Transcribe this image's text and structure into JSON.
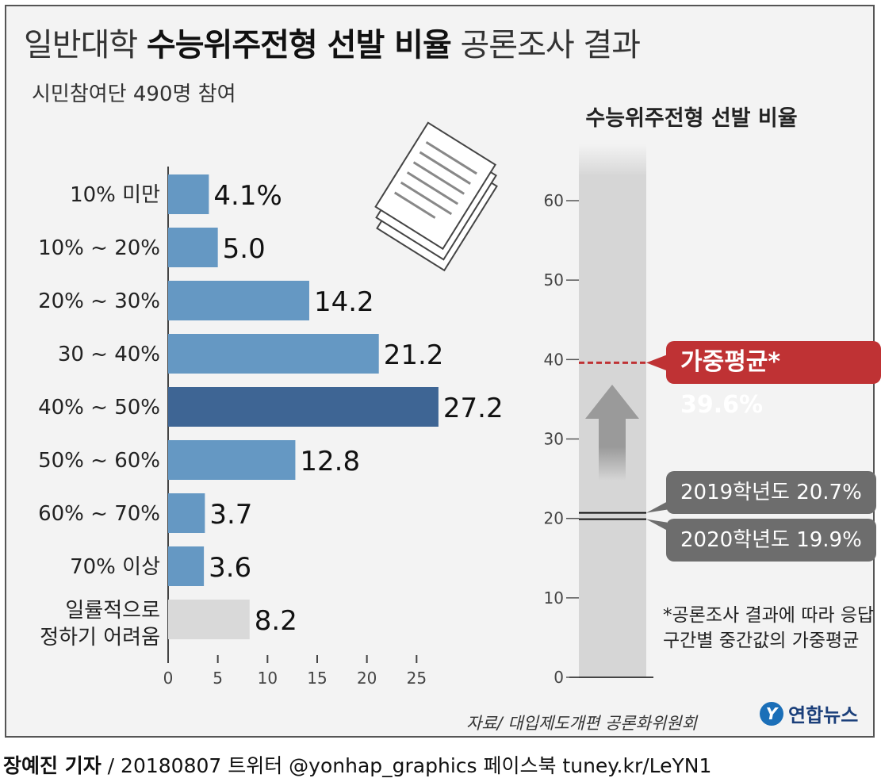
{
  "header": {
    "title_prefix": "일반대학 ",
    "title_bold": "수능위주전형 선발 비율",
    "title_suffix": " 공론조사 결과",
    "subtitle": "시민참여단 490명 참여"
  },
  "chart_data": [
    {
      "type": "bar",
      "orientation": "horizontal",
      "categories": [
        "10% 미만",
        "10% ~ 20%",
        "20% ~ 30%",
        "30 ~ 40%",
        "40% ~ 50%",
        "50% ~ 60%",
        "60% ~ 70%",
        "70% 이상",
        "일률적으로 정하기 어려움"
      ],
      "values": [
        4.1,
        5.0,
        14.2,
        21.2,
        27.2,
        12.8,
        3.7,
        3.6,
        8.2
      ],
      "value_labels": [
        "4.1%",
        "5.0",
        "14.2",
        "21.2",
        "27.2",
        "12.8",
        "3.7",
        "3.6",
        "8.2"
      ],
      "xlim": [
        0,
        30
      ],
      "xticks": [
        0,
        5,
        10,
        15,
        20,
        25
      ],
      "grid": false,
      "colors": {
        "default": "#6598c3",
        "highlight": "#3e6594",
        "neutral": "#d9d9d9"
      },
      "highlight_index": 4,
      "neutral_index": 8
    },
    {
      "type": "bar",
      "title": "수능위주전형 선발 비율",
      "ylim": [
        0,
        60
      ],
      "yticks": [
        0,
        10,
        20,
        30,
        40,
        50,
        60
      ],
      "markers": [
        {
          "label": "가중평균* 39.6%",
          "value": 39.6,
          "color": "#bf3234"
        },
        {
          "label": "2019학년도 20.7%",
          "value": 20.7,
          "color": "#6d6d6d"
        },
        {
          "label": "2020학년도 19.9%",
          "value": 19.9,
          "color": "#6d6d6d"
        }
      ],
      "note": "*공론조사 결과에 따라 응답구간별 중간값의 가중평균"
    }
  ],
  "footer": {
    "source": "자료/ 대입제도개편 공론화위원회",
    "logo_mark": "Y",
    "logo_text": "연합뉴스",
    "author": "장예진 기자",
    "credits": " / 20180807 트위터 @yonhap_graphics  페이스북 tuney.kr/LeYN1"
  }
}
